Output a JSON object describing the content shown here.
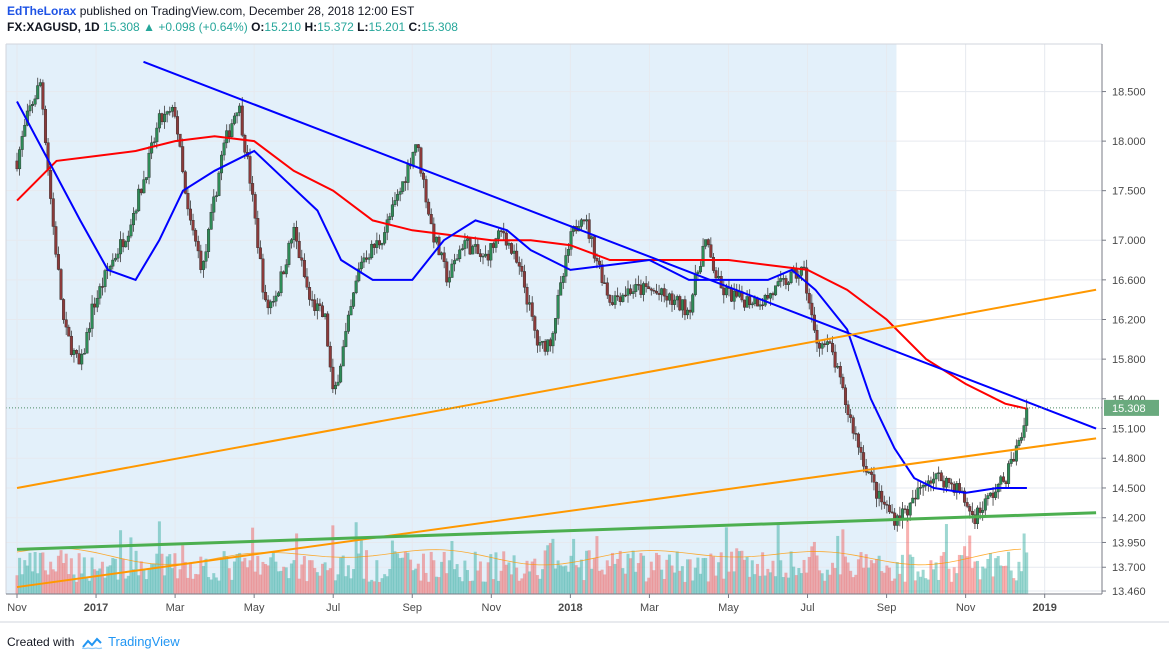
{
  "header": {
    "author": "EdTheLorax",
    "published": "published on TradingView.com, December 28, 2018 12:00 EST",
    "symbol": "FX:XAGUSD, 1D",
    "last": "15.308",
    "change_arrow": "▲",
    "change": "+0.098 (+0.64%)",
    "open_label": "O:",
    "open": "15.210",
    "high_label": "H:",
    "high": "15.372",
    "low_label": "L:",
    "low": "15.201",
    "close_label": "C:",
    "close": "15.308"
  },
  "footer": {
    "created_with": "Created with",
    "brand": "TradingView",
    "logo_icon": "tradingview-cloud-icon"
  },
  "chart_data": {
    "type": "candlestick",
    "symbol": "FX:XAGUSD",
    "interval": "1D",
    "y_axis": {
      "ticks": [
        13.46,
        13.7,
        13.95,
        14.2,
        14.5,
        14.8,
        15.1,
        15.4,
        15.8,
        16.2,
        16.6,
        17.0,
        17.5,
        18.0,
        18.5
      ],
      "tick_labels": [
        "13.460",
        "13.700",
        "13.950",
        "14.200",
        "14.500",
        "14.800",
        "15.100",
        "15.400",
        "15.800",
        "16.200",
        "16.600",
        "17.000",
        "17.500",
        "18.000",
        "18.500"
      ],
      "position": "right"
    },
    "x_axis": {
      "ticks": [
        {
          "label": "Nov",
          "t": 0
        },
        {
          "label": "2017",
          "t": 2,
          "bold": true
        },
        {
          "label": "Mar",
          "t": 4
        },
        {
          "label": "May",
          "t": 6
        },
        {
          "label": "Jul",
          "t": 8
        },
        {
          "label": "Sep",
          "t": 10
        },
        {
          "label": "Nov",
          "t": 12
        },
        {
          "label": "2018",
          "t": 14,
          "bold": true
        },
        {
          "label": "Mar",
          "t": 16
        },
        {
          "label": "May",
          "t": 18
        },
        {
          "label": "Jul",
          "t": 20
        },
        {
          "label": "Sep",
          "t": 22
        },
        {
          "label": "Nov",
          "t": 24
        },
        {
          "label": "2019",
          "t": 26,
          "bold": true
        }
      ]
    },
    "last_price": 15.308,
    "last_price_label": "15.308",
    "price_path": [
      [
        0,
        17.8
      ],
      [
        0.3,
        18.3
      ],
      [
        0.6,
        18.6
      ],
      [
        0.9,
        17.2
      ],
      [
        1.2,
        16.1
      ],
      [
        1.6,
        15.7
      ],
      [
        1.9,
        16.3
      ],
      [
        2.3,
        16.7
      ],
      [
        2.8,
        17.1
      ],
      [
        3.2,
        17.6
      ],
      [
        3.6,
        18.2
      ],
      [
        4.0,
        18.3
      ],
      [
        4.3,
        17.3
      ],
      [
        4.7,
        16.7
      ],
      [
        5.2,
        17.9
      ],
      [
        5.6,
        18.4
      ],
      [
        5.9,
        17.6
      ],
      [
        6.3,
        16.3
      ],
      [
        6.6,
        16.5
      ],
      [
        7.0,
        17.1
      ],
      [
        7.4,
        16.4
      ],
      [
        7.8,
        16.2
      ],
      [
        8.0,
        15.4
      ],
      [
        8.3,
        16.0
      ],
      [
        8.7,
        16.8
      ],
      [
        9.2,
        17.0
      ],
      [
        9.7,
        17.5
      ],
      [
        10.1,
        18.0
      ],
      [
        10.5,
        17.1
      ],
      [
        10.9,
        16.6
      ],
      [
        11.3,
        17.0
      ],
      [
        11.8,
        16.8
      ],
      [
        12.3,
        17.1
      ],
      [
        12.8,
        16.6
      ],
      [
        13.2,
        15.9
      ],
      [
        13.5,
        16.0
      ],
      [
        14.0,
        17.0
      ],
      [
        14.3,
        17.3
      ],
      [
        14.6,
        16.9
      ],
      [
        15.0,
        16.4
      ],
      [
        15.5,
        16.5
      ],
      [
        16.0,
        16.5
      ],
      [
        16.5,
        16.4
      ],
      [
        17.0,
        16.3
      ],
      [
        17.4,
        17.0
      ],
      [
        17.8,
        16.5
      ],
      [
        18.3,
        16.4
      ],
      [
        18.9,
        16.4
      ],
      [
        19.5,
        16.6
      ],
      [
        19.9,
        16.7
      ],
      [
        20.2,
        16.0
      ],
      [
        20.6,
        15.9
      ],
      [
        21.0,
        15.3
      ],
      [
        21.4,
        14.8
      ],
      [
        21.8,
        14.4
      ],
      [
        22.2,
        14.2
      ],
      [
        22.6,
        14.3
      ],
      [
        23.0,
        14.6
      ],
      [
        23.4,
        14.6
      ],
      [
        23.8,
        14.5
      ],
      [
        24.2,
        14.2
      ],
      [
        24.6,
        14.4
      ],
      [
        25.0,
        14.6
      ],
      [
        25.4,
        15.0
      ],
      [
        25.55,
        15.308
      ]
    ],
    "series": [
      {
        "name": "",
        "color": "#ff0000",
        "data": [
          [
            0,
            17.4
          ],
          [
            1,
            17.8
          ],
          [
            2,
            17.85
          ],
          [
            3,
            17.9
          ],
          [
            4,
            18.0
          ],
          [
            5,
            18.05
          ],
          [
            6,
            18.0
          ],
          [
            7,
            17.7
          ],
          [
            8,
            17.5
          ],
          [
            9,
            17.2
          ],
          [
            10,
            17.1
          ],
          [
            11,
            17.05
          ],
          [
            12,
            17.0
          ],
          [
            13,
            17.0
          ],
          [
            14,
            16.95
          ],
          [
            15,
            16.8
          ],
          [
            16,
            16.8
          ],
          [
            17,
            16.8
          ],
          [
            18,
            16.8
          ],
          [
            19,
            16.75
          ],
          [
            20,
            16.7
          ],
          [
            21,
            16.5
          ],
          [
            22,
            16.2
          ],
          [
            23,
            15.8
          ],
          [
            24,
            15.55
          ],
          [
            25,
            15.35
          ],
          [
            25.55,
            15.3
          ]
        ]
      },
      {
        "name": "",
        "color": "#0000ff",
        "data": [
          [
            0,
            18.4
          ],
          [
            0.8,
            17.8
          ],
          [
            1.6,
            17.2
          ],
          [
            2.3,
            16.7
          ],
          [
            3.0,
            16.6
          ],
          [
            3.6,
            17.0
          ],
          [
            4.2,
            17.5
          ],
          [
            5.0,
            17.7
          ],
          [
            6.0,
            17.9
          ],
          [
            6.8,
            17.6
          ],
          [
            7.6,
            17.3
          ],
          [
            8.2,
            16.8
          ],
          [
            9.0,
            16.6
          ],
          [
            10.0,
            16.6
          ],
          [
            10.8,
            17.0
          ],
          [
            11.6,
            17.2
          ],
          [
            12.4,
            17.1
          ],
          [
            13.0,
            16.9
          ],
          [
            14.0,
            16.7
          ],
          [
            15.0,
            16.75
          ],
          [
            16.0,
            16.8
          ],
          [
            17.0,
            16.6
          ],
          [
            18.0,
            16.6
          ],
          [
            19.0,
            16.6
          ],
          [
            19.6,
            16.7
          ],
          [
            20.2,
            16.5
          ],
          [
            21.0,
            16.1
          ],
          [
            21.6,
            15.4
          ],
          [
            22.2,
            14.9
          ],
          [
            22.7,
            14.6
          ],
          [
            23.2,
            14.5
          ],
          [
            24.0,
            14.45
          ],
          [
            24.8,
            14.5
          ],
          [
            25.55,
            14.5
          ]
        ]
      }
    ],
    "trendlines": [
      {
        "color": "#0000ff",
        "from": [
          3.2,
          18.8
        ],
        "to": [
          27.3,
          15.1
        ]
      },
      {
        "color": "#ff9800",
        "from": [
          0,
          14.5
        ],
        "to": [
          27.3,
          16.5
        ]
      },
      {
        "color": "#ff9800",
        "from": [
          0,
          13.5
        ],
        "to": [
          27.3,
          15.0
        ]
      },
      {
        "color": "#4caf50",
        "from": [
          0,
          13.88
        ],
        "to": [
          27.3,
          14.25
        ]
      }
    ],
    "colors": {
      "up": "#26a69a",
      "down": "#ef5350",
      "candle_up": "#2e8b57",
      "candle_down": "#8b3a3a",
      "shade": "#e3f0fa",
      "grid": "#e6e9ef",
      "axis": "#787b86",
      "last_price_badge": "#6aaa7e"
    }
  }
}
